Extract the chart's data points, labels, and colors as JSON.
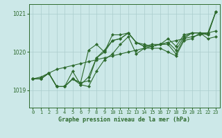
{
  "title": "Graphe pression niveau de la mer (hPa)",
  "bg_color": "#cce8e8",
  "line_color": "#2d6a2d",
  "grid_color": "#aacccc",
  "xlim": [
    -0.5,
    23.5
  ],
  "ylim": [
    1018.55,
    1021.25
  ],
  "yticks": [
    1019,
    1020,
    1021
  ],
  "xtick_labels": [
    "0",
    "1",
    "2",
    "3",
    "4",
    "5",
    "6",
    "7",
    "8",
    "9",
    "10",
    "11",
    "12",
    "13",
    "14",
    "15",
    "16",
    "17",
    "18",
    "19",
    "20",
    "21",
    "22",
    "23"
  ],
  "series": [
    [
      1019.3,
      1019.3,
      1019.45,
      1019.1,
      1019.1,
      1019.3,
      1019.2,
      1019.25,
      1019.85,
      1020.05,
      1020.3,
      1020.35,
      1020.5,
      1020.25,
      1020.2,
      1020.15,
      1020.2,
      1020.25,
      1020.05,
      1020.4,
      1020.5,
      1020.5,
      1020.45,
      1021.05
    ],
    [
      1019.3,
      1019.3,
      1019.45,
      1019.1,
      1019.1,
      1019.5,
      1019.15,
      1019.1,
      1019.5,
      1019.8,
      1019.95,
      1020.2,
      1020.4,
      1019.95,
      1020.1,
      1020.1,
      1020.1,
      1020.0,
      1019.9,
      1020.3,
      1020.35,
      1020.5,
      1020.5,
      1021.05
    ],
    [
      1019.3,
      1019.3,
      1019.45,
      1019.1,
      1019.1,
      1019.3,
      1019.2,
      1020.05,
      1020.2,
      1020.0,
      1020.45,
      1020.45,
      1020.5,
      1020.25,
      1020.15,
      1020.2,
      1020.2,
      1020.35,
      1020.15,
      1020.45,
      1020.5,
      1020.5,
      1020.45,
      1021.05
    ],
    [
      1019.3,
      1019.3,
      1019.45,
      1019.1,
      1019.1,
      1019.3,
      1019.15,
      1019.35,
      1019.85,
      1020.0,
      1020.3,
      1020.35,
      1020.5,
      1020.25,
      1020.15,
      1020.15,
      1020.2,
      1020.2,
      1019.95,
      1020.35,
      1020.5,
      1020.5,
      1020.35,
      1020.4
    ],
    [
      1019.3,
      1019.35,
      1019.45,
      1019.55,
      1019.6,
      1019.65,
      1019.7,
      1019.75,
      1019.8,
      1019.85,
      1019.9,
      1019.95,
      1020.0,
      1020.05,
      1020.1,
      1020.15,
      1020.2,
      1020.25,
      1020.3,
      1020.35,
      1020.4,
      1020.45,
      1020.5,
      1020.55
    ]
  ]
}
